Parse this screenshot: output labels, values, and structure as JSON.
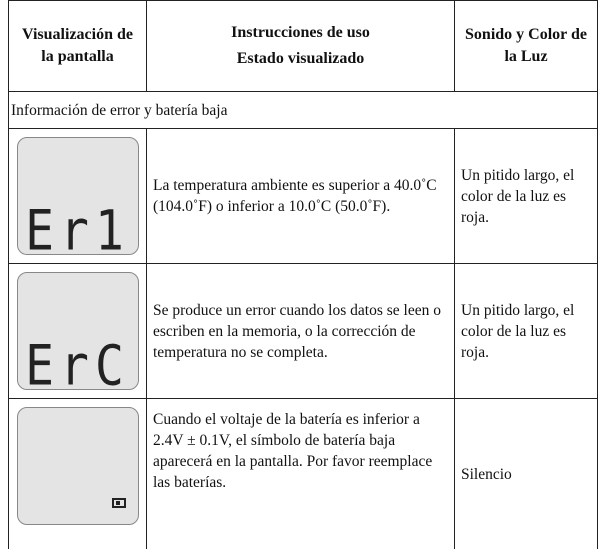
{
  "header": {
    "col1": "Visualización de la pantalla",
    "col2": [
      "Instrucciones de uso",
      "Estado visualizado"
    ],
    "col3": "Sonido y Color de la Luz"
  },
  "section": "Información de error y batería baja",
  "rows": [
    {
      "display": "Er1",
      "instructions": "La temperatura ambiente es superior a 40.0˚C (104.0˚F) o inferior a 10.0˚C (50.0˚F).",
      "sound": "Un pitido largo, el color de la luz es roja."
    },
    {
      "display": "ErC",
      "instructions": "Se produce un error cuando los datos se leen o escriben en la memoria, o la corrección de temperatura no se completa.",
      "sound": "Un pitido largo, el color de la luz es roja."
    },
    {
      "instructions": "Cuando el voltaje de la batería es inferior a 2.4V ± 0.1V, el símbolo de batería baja aparecerá en la pantalla. Por favor reemplace las baterías.",
      "sound": "Silencio"
    }
  ]
}
